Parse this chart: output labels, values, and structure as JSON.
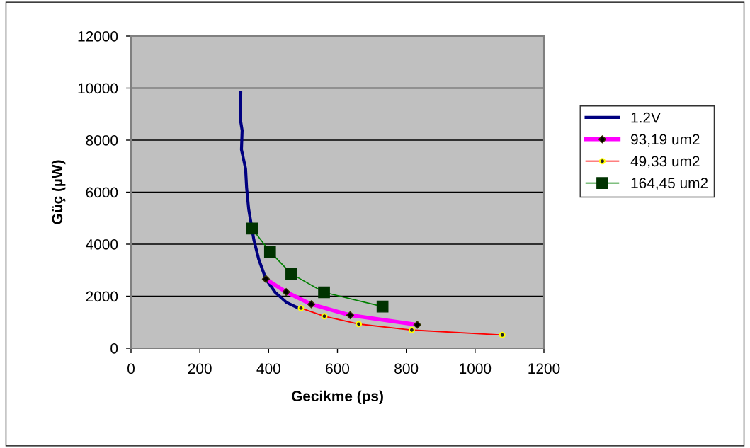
{
  "chart_data": {
    "type": "line",
    "xlabel": "Gecikme (ps)",
    "ylabel": "Güç (µW)",
    "xlim": [
      0,
      1200
    ],
    "xticks": [
      0,
      200,
      400,
      600,
      800,
      1000,
      1200
    ],
    "ylim": [
      0,
      12000
    ],
    "yticks": [
      0,
      2000,
      4000,
      6000,
      8000,
      10000,
      12000
    ],
    "grid": "y",
    "legend": "right",
    "series": [
      {
        "name": "1.2V",
        "color": "#000080",
        "marker": "none",
        "x": [
          319,
          318,
          323,
          321,
          333,
          336,
          342,
          350,
          357,
          371,
          392,
          419,
          453,
          484
        ],
        "values": [
          9850,
          8780,
          8370,
          7640,
          6900,
          6170,
          5350,
          4710,
          4170,
          3430,
          2660,
          2150,
          1750,
          1560
        ]
      },
      {
        "name": "93,19 um2",
        "color": "#ff00ff",
        "marker": "diamond",
        "x": [
          392,
          451,
          524,
          637,
          832
        ],
        "values": [
          2660,
          2160,
          1690,
          1270,
          900
        ]
      },
      {
        "name": "49,33 um2",
        "color": "#ff0000",
        "marker": "circle",
        "x": [
          494,
          562,
          662,
          816,
          1079
        ],
        "values": [
          1540,
          1230,
          930,
          700,
          510
        ]
      },
      {
        "name": "164,45 um2",
        "color": "#008000",
        "marker": "square",
        "x": [
          352,
          404,
          466,
          561,
          731
        ],
        "values": [
          4600,
          3710,
          2860,
          2150,
          1600
        ]
      }
    ]
  }
}
